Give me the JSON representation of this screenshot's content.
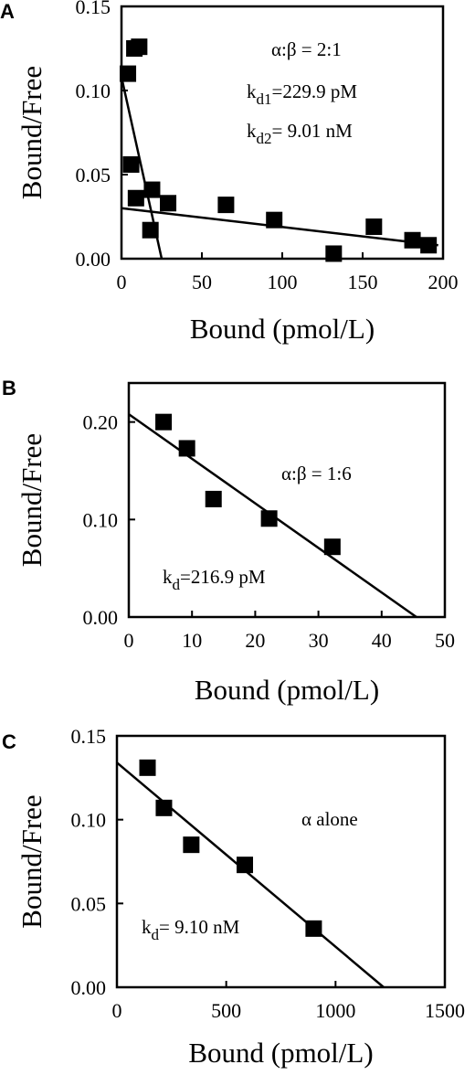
{
  "chart_data": [
    {
      "type": "scatter",
      "panel_label": "A",
      "xlabel": "Bound (pmol/L)",
      "ylabel": "Bound/Free",
      "xlim": [
        0,
        200
      ],
      "ylim": [
        0,
        0.15
      ],
      "xticks": [
        0,
        50,
        100,
        150,
        200
      ],
      "yticks": [
        0,
        0.05,
        0.1,
        0.15
      ],
      "xtick_labels": [
        "0",
        "50",
        "100",
        "150",
        "200"
      ],
      "ytick_labels": [
        "0.00",
        "0.05",
        "0.10",
        "0.15"
      ],
      "points": [
        {
          "x": 4,
          "y": 0.11
        },
        {
          "x": 8,
          "y": 0.125
        },
        {
          "x": 11,
          "y": 0.126
        },
        {
          "x": 6,
          "y": 0.056
        },
        {
          "x": 9,
          "y": 0.036
        },
        {
          "x": 19,
          "y": 0.041
        },
        {
          "x": 18,
          "y": 0.017
        },
        {
          "x": 29,
          "y": 0.033
        },
        {
          "x": 65,
          "y": 0.032
        },
        {
          "x": 95,
          "y": 0.023
        },
        {
          "x": 132,
          "y": 0.003
        },
        {
          "x": 157,
          "y": 0.019
        },
        {
          "x": 181,
          "y": 0.011
        },
        {
          "x": 191,
          "y": 0.008
        }
      ],
      "fit_lines": [
        {
          "x": [
            0,
            25
          ],
          "y": [
            0.108,
            0.0
          ]
        },
        {
          "x": [
            0,
            197
          ],
          "y": [
            0.03,
            0.008
          ]
        }
      ],
      "annotations": [
        {
          "main": "α:β = 2:1",
          "sub": "",
          "rest": ""
        },
        {
          "main": "k",
          "sub": "d1",
          "rest": "=229.9 pM"
        },
        {
          "main": "k",
          "sub": "d2",
          "rest": "= 9.01 nM"
        }
      ]
    },
    {
      "type": "scatter",
      "panel_label": "B",
      "xlabel": "Bound (pmol/L)",
      "ylabel": "Bound/Free",
      "xlim": [
        0,
        50
      ],
      "ylim": [
        0,
        0.24
      ],
      "xticks": [
        0,
        10,
        20,
        30,
        40,
        50
      ],
      "yticks": [
        0,
        0.1,
        0.2
      ],
      "xtick_labels": [
        "0",
        "10",
        "20",
        "30",
        "40",
        "50"
      ],
      "ytick_labels": [
        "0.00",
        "0.10",
        "0.20"
      ],
      "points": [
        {
          "x": 5.5,
          "y": 0.2
        },
        {
          "x": 9.2,
          "y": 0.173
        },
        {
          "x": 13.4,
          "y": 0.121
        },
        {
          "x": 22.2,
          "y": 0.101
        },
        {
          "x": 32.2,
          "y": 0.072
        }
      ],
      "fit_lines": [
        {
          "x": [
            0,
            45.5
          ],
          "y": [
            0.208,
            0.0
          ]
        }
      ],
      "annotations": [
        {
          "main": "α:β = 1:6",
          "sub": "",
          "rest": ""
        },
        {
          "main": "k",
          "sub": "d",
          "rest": "=216.9 pM"
        }
      ]
    },
    {
      "type": "scatter",
      "panel_label": "C",
      "xlabel": "Bound (pmol/L)",
      "ylabel": "Bound/Free",
      "xlim": [
        0,
        1500
      ],
      "ylim": [
        0,
        0.15
      ],
      "xticks": [
        0,
        500,
        1000,
        1500
      ],
      "yticks": [
        0,
        0.05,
        0.1,
        0.15
      ],
      "xtick_labels": [
        "0",
        "500",
        "1000",
        "1500"
      ],
      "ytick_labels": [
        "0.00",
        "0.05",
        "0.10",
        "0.15"
      ],
      "points": [
        {
          "x": 140,
          "y": 0.131
        },
        {
          "x": 215,
          "y": 0.107
        },
        {
          "x": 340,
          "y": 0.085
        },
        {
          "x": 585,
          "y": 0.073
        },
        {
          "x": 900,
          "y": 0.035
        }
      ],
      "fit_lines": [
        {
          "x": [
            0,
            1220
          ],
          "y": [
            0.134,
            0.0
          ]
        }
      ],
      "annotations": [
        {
          "main": "α alone",
          "sub": "",
          "rest": ""
        },
        {
          "main": "k",
          "sub": "d",
          "rest": "= 9.10 nM"
        }
      ]
    }
  ]
}
